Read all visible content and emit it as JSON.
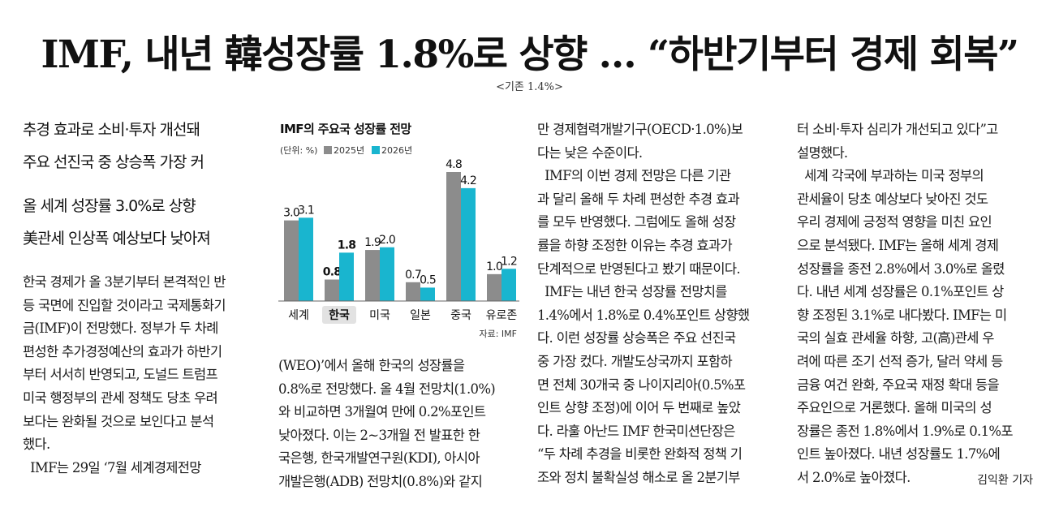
{
  "headline": "IMF, 내년 韓성장률 1.8%로 상향 … “하반기부터 경제 회복”",
  "subnote": "<기존 1.4%>",
  "subheads": [
    "추경 효과로 소비·투자 개선돼",
    "주요 선진국 중 상승폭 가장 커",
    "올 세계 성장률 3.0%로 상향",
    "美관세 인상폭 예상보다 낮아져"
  ],
  "col1": [
    "한국 경제가 올 3분기부터 본격적인 반",
    "등 국면에 진입할 것이라고 국제통화기",
    "금(IMF)이 전망했다. 정부가 두 차례",
    "편성한 추가경정예산의 효과가 하반기",
    "부터 서서히 반영되고, 도널드 트럼프",
    "미국 행정부의 관세 정책도 당초 우려",
    "보다는 완화될 것으로 보인다고 분석",
    "했다.",
    "  IMF는 29일 ‘7월 세계경제전망"
  ],
  "col2": [
    "(WEO)’에서 올해 한국의 성장률을",
    "0.8%로 전망했다. 올 4월 전망치(1.0%)",
    "와 비교하면 3개월여 만에 0.2%포인트",
    "낮아졌다. 이는 2~3개월 전 발표한 한",
    "국은행, 한국개발연구원(KDI), 아시아",
    "개발은행(ADB) 전망치(0.8%)와 같지"
  ],
  "col3": [
    "만 경제협력개발기구(OECD·1.0%)보",
    "다는 낮은 수준이다.",
    "  IMF의 이번 경제 전망은 다른 기관",
    "과 달리 올해 두 차례 편성한 추경 효과",
    "를 모두 반영했다. 그럼에도 올해 성장",
    "률을 하향 조정한 이유는 추경 효과가",
    "단계적으로 반영된다고 봤기 때문이다.",
    "  IMF는 내년 한국 성장률 전망치를",
    "1.4%에서 1.8%로 0.4%포인트 상향했",
    "다. 이런 성장률 상승폭은 주요 선진국",
    "중 가장 컸다. 개발도상국까지 포함하",
    "면 전체 30개국 중 나이지리아(0.5%포",
    "인트 상향 조정)에 이어 두 번째로 높았",
    "다. 라훌 아난드 IMF 한국미션단장은",
    "“두 차례 추경을 비롯한 완화적 정책 기",
    "조와 정치 불확실성 해소로 올 2분기부"
  ],
  "col4": [
    "터 소비·투자 심리가 개선되고 있다”고",
    "설명했다.",
    "  세계 각국에 부과하는 미국 정부의",
    "관세율이 당초 예상보다 낮아진 것도",
    "우리 경제에 긍정적 영향을 미친 요인",
    "으로 분석됐다. IMF는 올해 세계 경제",
    "성장률을 종전 2.8%에서 3.0%로 올렸",
    "다. 내년 세계 성장률은 0.1%포인트 상",
    "향 조정된 3.1%로 내다봤다. IMF는 미",
    "국의 실효 관세율 하향, 고(高)관세 우",
    "려에 따른 조기 선적 증가, 달러 약세 등",
    "금융 여건 완화, 주요국 재정 확대 등을",
    "주요인으로 거론했다. 올해 미국의 성",
    "장률은 종전 1.8%에서 1.9%로 0.1%포",
    "인트 높아졌다. 내년 성장률도 1.7%에",
    "서 2.0%로 높아졌다."
  ],
  "byline": "김익환 기자",
  "chart_data": {
    "type": "bar",
    "title": "IMF의 주요국 성장률 전망",
    "unit_label": "(단위: %)",
    "source": "자료: IMF",
    "categories": [
      "세계",
      "한국",
      "미국",
      "일본",
      "중국",
      "유로존"
    ],
    "highlight_category": "한국",
    "series": [
      {
        "name": "2025년",
        "values": [
          3.0,
          0.8,
          1.9,
          0.7,
          4.8,
          1.0
        ],
        "value_labels": [
          "3.0",
          "0.8",
          "1.9",
          "0.7",
          "4.8",
          "1.0"
        ],
        "color": "#8c8c8c"
      },
      {
        "name": "2026년",
        "values": [
          3.1,
          1.8,
          2.0,
          0.5,
          4.2,
          1.2
        ],
        "value_labels": [
          "3.1",
          "1.8",
          "2.0",
          "0.5",
          "4.2",
          "1.2"
        ],
        "color": "#19b5cf"
      }
    ],
    "ylim": [
      0,
      5
    ]
  }
}
